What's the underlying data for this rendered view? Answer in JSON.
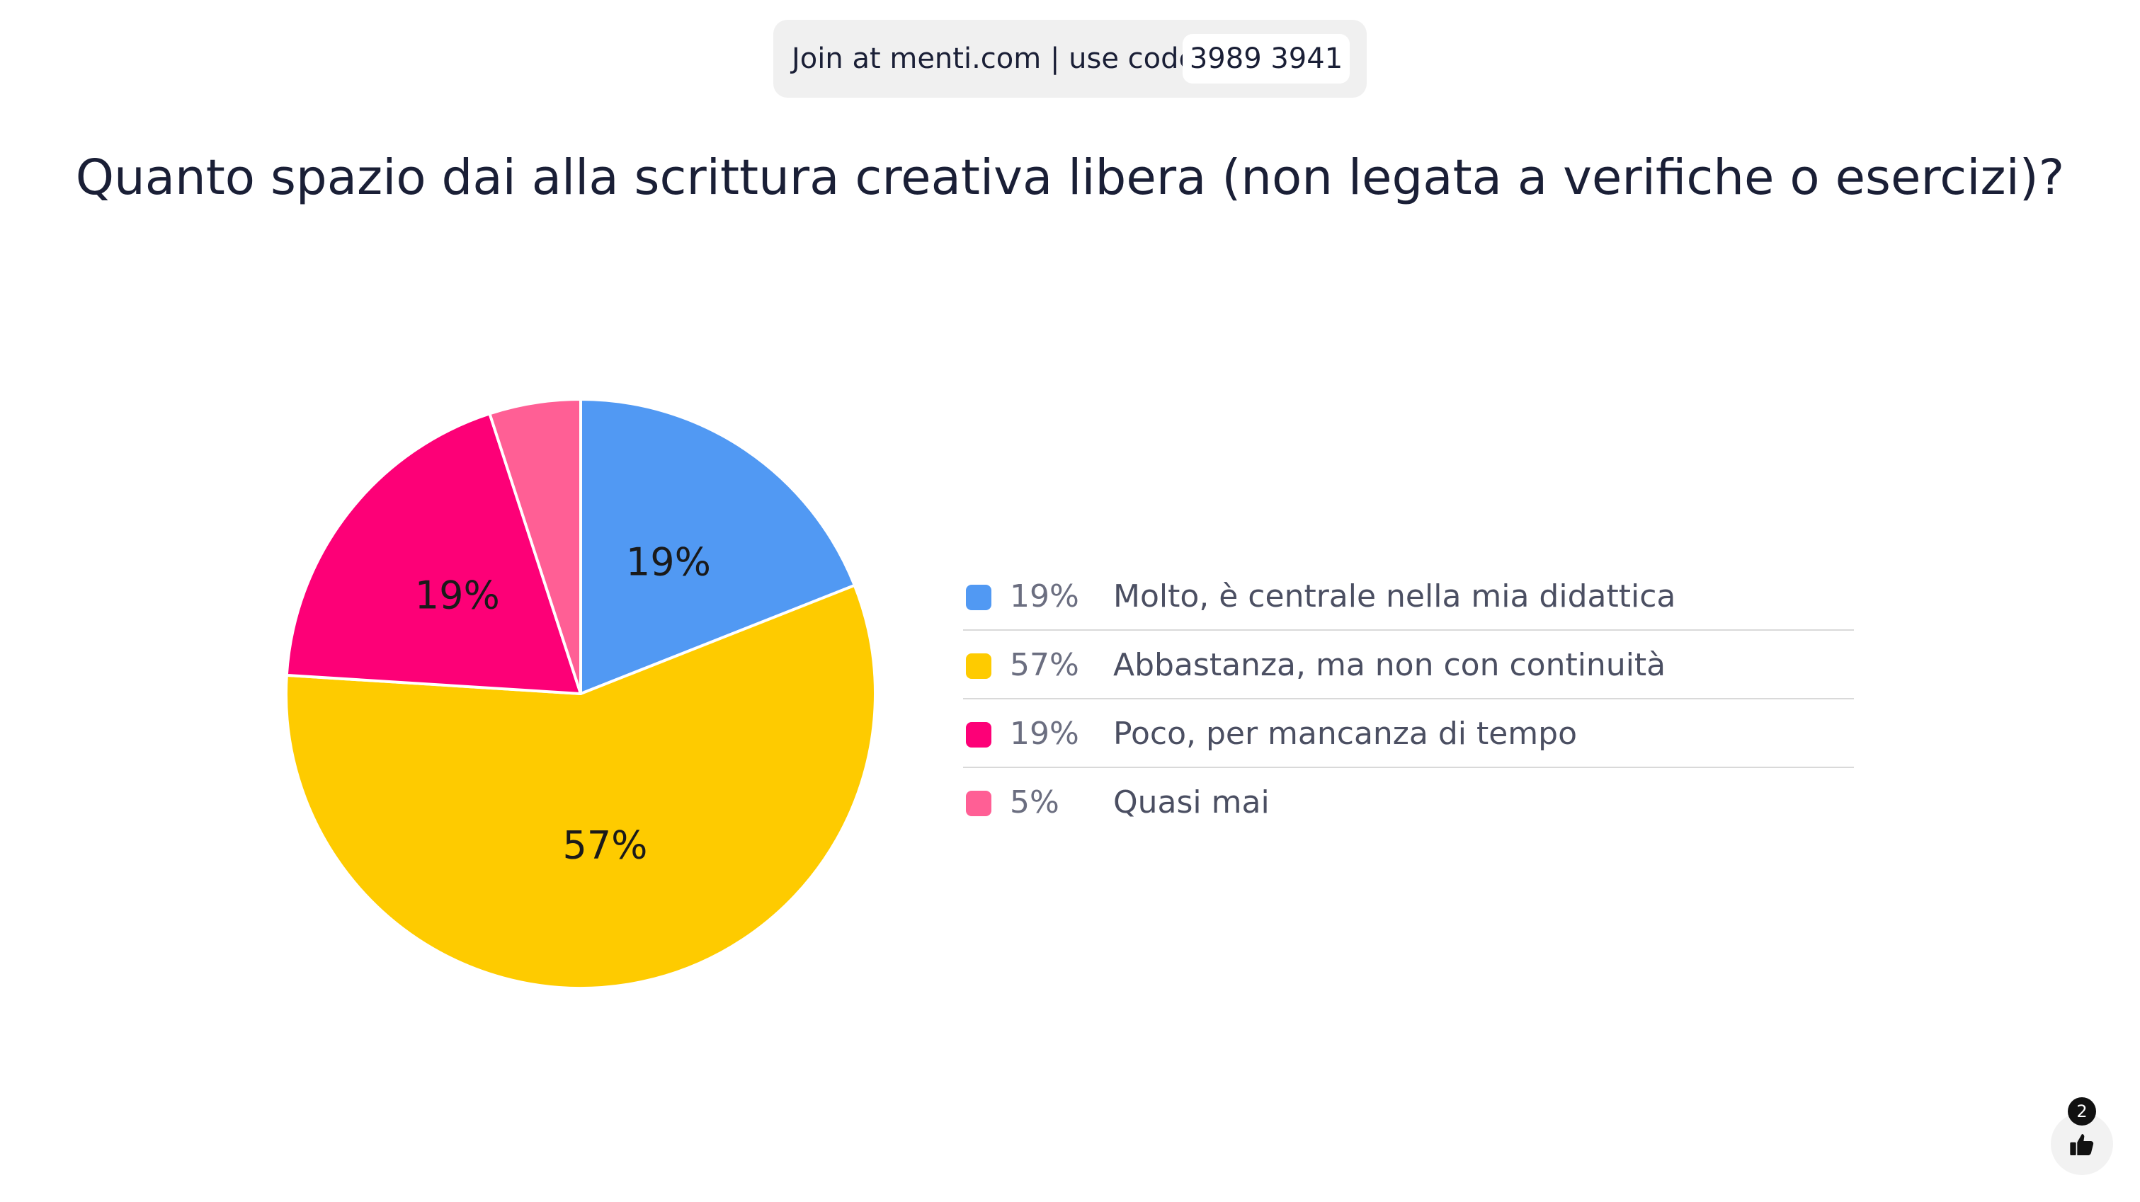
{
  "join": {
    "text": "Join at menti.com | use code",
    "code": "3989 3941"
  },
  "question": "Quanto spazio dai alla scrittura creativa libera (non legata a verifiche o esercizi)?",
  "chart_data": {
    "type": "pie",
    "title": "Quanto spazio dai alla scrittura creativa libera (non legata a verifiche o esercizi)?",
    "legend_placement": "right",
    "slices": [
      {
        "label": "Molto, è centrale nella mia didattica",
        "value": 19,
        "display": "19%",
        "color": "#5199f3",
        "show_label": true
      },
      {
        "label": "Abbastanza, ma non con continuità",
        "value": 57,
        "display": "57%",
        "color": "#fecb00",
        "show_label": true
      },
      {
        "label": "Poco, per mancanza di tempo",
        "value": 19,
        "display": "19%",
        "color": "#fd0077",
        "show_label": true
      },
      {
        "label": "Quasi mai",
        "value": 5,
        "display": "5%",
        "color": "#ff5f95",
        "show_label": false
      }
    ]
  },
  "reactions": {
    "count": "2",
    "icon": "thumbs-up-icon"
  }
}
